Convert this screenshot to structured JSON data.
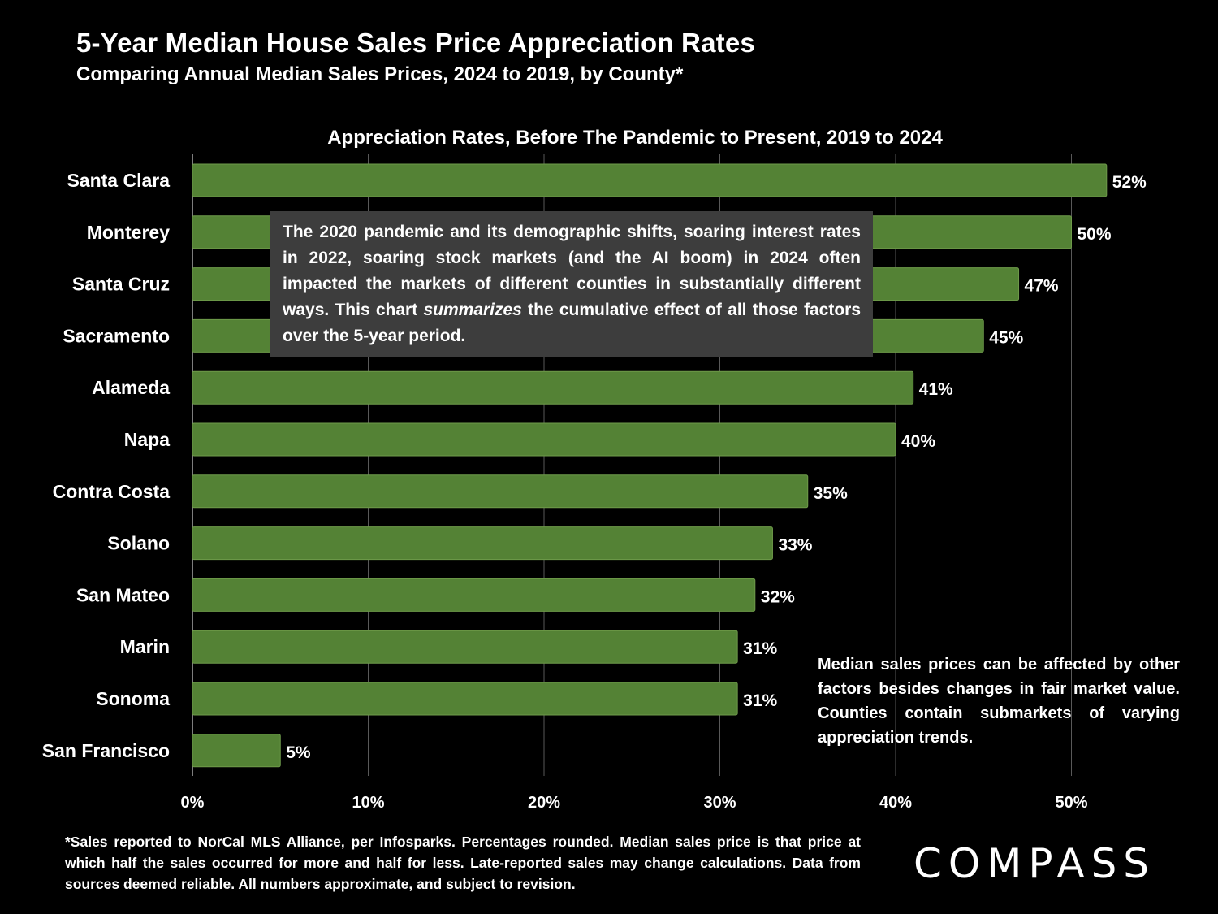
{
  "header": {
    "title": "5-Year Median House Sales Price Appreciation Rates",
    "subtitle": "Comparing Annual Median Sales Prices, 2024 to 2019, by County*"
  },
  "chart_data": {
    "type": "bar",
    "orientation": "horizontal",
    "title": "Appreciation Rates, Before The Pandemic to Present, 2019 to 2024",
    "categories": [
      "Santa Clara",
      "Monterey",
      "Santa Cruz",
      "Sacramento",
      "Alameda",
      "Napa",
      "Contra Costa",
      "Solano",
      "San Mateo",
      "Marin",
      "Sonoma",
      "San Francisco"
    ],
    "values": [
      52,
      50,
      47,
      45,
      41,
      40,
      35,
      33,
      32,
      31,
      31,
      5
    ],
    "value_labels": [
      "52%",
      "50%",
      "47%",
      "45%",
      "41%",
      "40%",
      "35%",
      "33%",
      "32%",
      "31%",
      "31%",
      "5%"
    ],
    "x_ticks": [
      0,
      10,
      20,
      30,
      40,
      50
    ],
    "x_tick_labels": [
      "0%",
      "10%",
      "20%",
      "30%",
      "40%",
      "50%"
    ],
    "xlim": [
      0,
      55
    ],
    "grid": true,
    "bar_color": "#548235",
    "xlabel": "",
    "ylabel": ""
  },
  "callout": {
    "text_before": "The 2020 pandemic and its demographic shifts, soaring interest rates in 2022, soaring stock markets (and the AI boom) in 2024 often impacted the markets of different counties in substantially different ways. This chart ",
    "emphasis": "summarizes",
    "text_after": " the cumulative effect of all those factors over the 5-year period."
  },
  "note": "Median sales prices can be affected by other factors besides changes in fair market value. Counties contain submarkets of varying appreciation trends.",
  "footnote": "*Sales reported to NorCal MLS Alliance, per Infosparks. Percentages rounded. Median sales price is that price at which half the sales occurred for more and half for less.  Late-reported sales may change calculations. Data from sources deemed reliable. All numbers approximate, and subject to revision.",
  "brand": {
    "logo_text": "COMPASS"
  },
  "colors": {
    "background": "#000000",
    "bar": "#548235",
    "callout_bg": "#3d3d3d",
    "text": "#ffffff"
  }
}
